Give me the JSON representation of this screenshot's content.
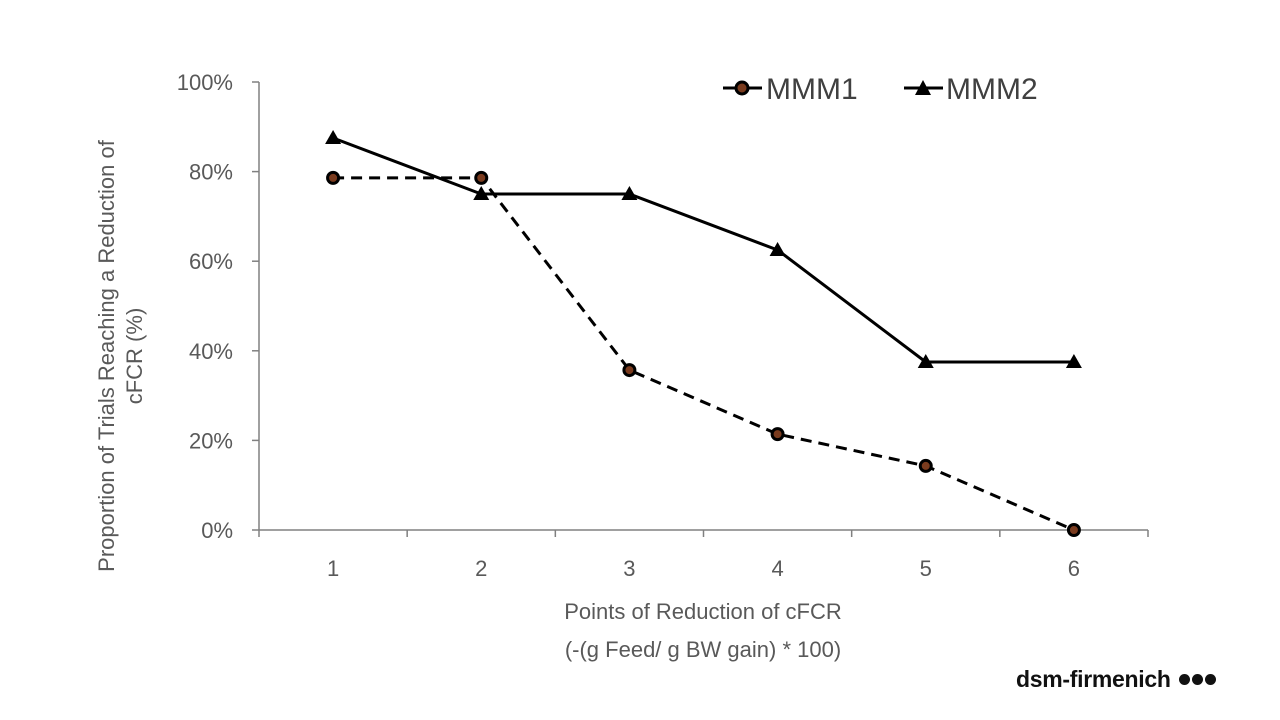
{
  "chart_data": {
    "type": "line",
    "title": "",
    "categories": [
      "1",
      "2",
      "3",
      "4",
      "5",
      "6"
    ],
    "x": [
      1,
      2,
      3,
      4,
      5,
      6
    ],
    "series": [
      {
        "name": "MMM1",
        "values": [
          78.6,
          78.6,
          35.7,
          21.4,
          14.3,
          0
        ],
        "line_style": "dashed",
        "marker": "circle",
        "color": "#000000"
      },
      {
        "name": "MMM2",
        "values": [
          87.5,
          75,
          75,
          62.5,
          37.5,
          37.5
        ],
        "line_style": "solid",
        "marker": "triangle",
        "color": "#000000"
      }
    ],
    "xlabel_line1": "Points of Reduction of cFCR",
    "xlabel_line2": "(-(g Feed/ g BW gain) * 100)",
    "ylabel_line1": "Proportion of Trials Reaching a Reduction of",
    "ylabel_line2": "cFCR  (%)",
    "ylim": [
      0,
      100
    ],
    "yticks": [
      0,
      20,
      40,
      60,
      80,
      100
    ],
    "ytick_labels": [
      "0%",
      "20%",
      "40%",
      "60%",
      "80%",
      "100%"
    ],
    "grid": false,
    "legend_position": "top-right"
  },
  "brand": {
    "text": "dsm-firmenich"
  }
}
